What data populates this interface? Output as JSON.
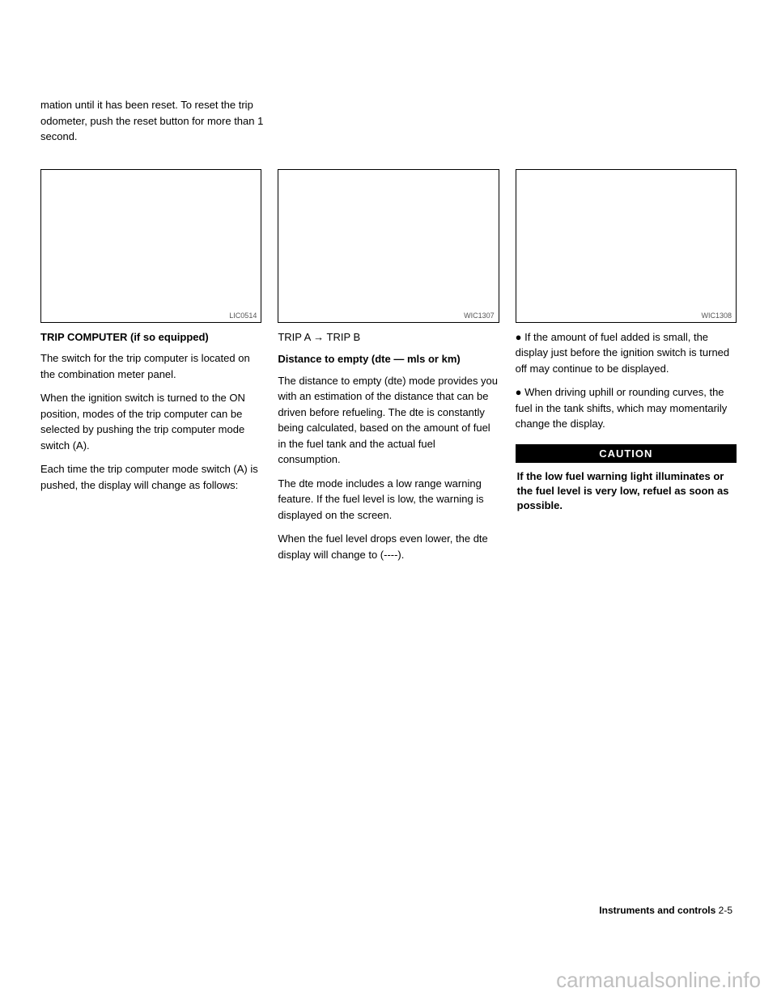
{
  "intro": "mation until it has been reset. To reset the trip odometer, push the reset button for more than 1 second.",
  "columns": [
    {
      "image_caption": "LIC0514",
      "heading": "TRIP COMPUTER (if so equipped)",
      "paragraphs": [
        "The switch for the trip computer is located on the combination meter panel.",
        "When the ignition switch is turned to the ON position, modes of the trip computer can be selected by pushing the trip computer mode switch (A).",
        "Each time the trip computer mode switch (A) is pushed, the display will change as follows:"
      ]
    },
    {
      "image_caption": "WIC1307",
      "heading_prefix": "TRIP A → TRIP B",
      "heading": "Distance to empty (dte — mls or km)",
      "paragraphs": [
        "The distance to empty (dte) mode provides you with an estimation of the distance that can be driven before refueling. The dte is constantly being calculated, based on the amount of fuel in the fuel tank and the actual fuel consumption.",
        "The dte mode includes a low range warning feature. If the fuel level is low, the warning is displayed on the screen.",
        "When the fuel level drops even lower, the dte display will change to (----)."
      ]
    },
    {
      "image_caption": "WIC1308",
      "paragraphs": [
        "● If the amount of fuel added is small, the display just before the ignition switch is turned off may continue to be displayed.",
        "● When driving uphill or rounding curves, the fuel in the tank shifts, which may momentarily change the display."
      ],
      "caution_label": "CAUTION",
      "caution_text": "If the low fuel warning light illuminates or the fuel level is very low, refuel as soon as possible."
    }
  ],
  "footer": {
    "section": "Instruments and controls",
    "page": "2-5"
  },
  "watermark": "carmanualsonline.info"
}
